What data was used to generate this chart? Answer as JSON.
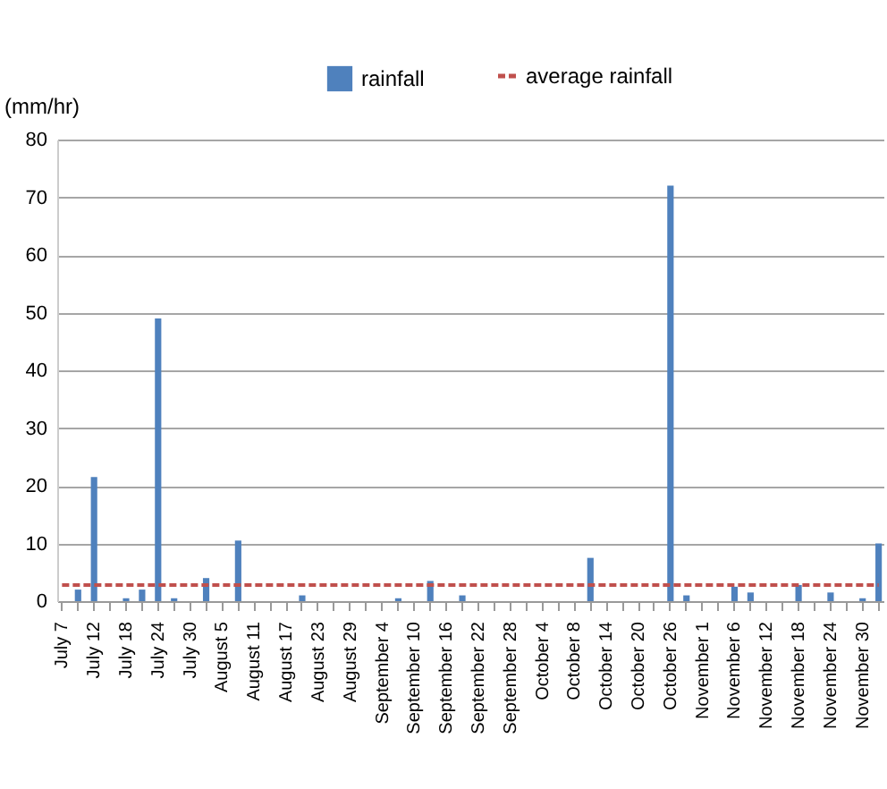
{
  "chart_data": {
    "type": "bar",
    "ylabel": "(mm/hr)",
    "categories": [
      "July 7",
      null,
      "July 12",
      null,
      "July 18",
      null,
      "July 24",
      null,
      "July 30",
      null,
      "August 5",
      null,
      "August 11",
      null,
      "August 17",
      null,
      "August 23",
      null,
      "August 29",
      null,
      "September 4",
      null,
      "September 10",
      null,
      "September 16",
      null,
      "September 22",
      null,
      "September 28",
      null,
      "October 4",
      null,
      "October 8",
      null,
      "October 14",
      null,
      "October 20",
      null,
      "October 26",
      null,
      "November 1",
      null,
      "November 6",
      null,
      "November 12",
      null,
      "November 18",
      null,
      "November 24",
      null,
      "November 30",
      null
    ],
    "series": [
      {
        "name": "rainfall",
        "color": "#4f81bd",
        "values": [
          0,
          2,
          21.5,
          0,
          0.5,
          2,
          49,
          0.5,
          0,
          4,
          0,
          10.5,
          0,
          0,
          0,
          1,
          0,
          0,
          0,
          0,
          0,
          0.5,
          0,
          3.5,
          0,
          1,
          0,
          0,
          0,
          0,
          0,
          0,
          0,
          7.5,
          0,
          0,
          0,
          0,
          72,
          1,
          0,
          0,
          2.5,
          1.5,
          0,
          0,
          2.8,
          0,
          1.5,
          0,
          0.5,
          10
        ]
      },
      {
        "name": "average rainfall",
        "type": "line",
        "color": "#c0504d",
        "line_style": "dashed",
        "values": [
          2.8,
          2.8,
          2.8,
          2.8,
          2.8,
          2.8,
          2.8,
          2.8,
          2.8,
          2.8,
          2.8,
          2.8,
          2.8,
          2.8,
          2.8,
          2.8,
          2.8,
          2.8,
          2.8,
          2.8,
          2.8,
          2.8,
          2.8,
          2.8,
          2.8,
          2.8,
          2.8,
          2.8,
          2.8,
          2.8,
          2.8,
          2.8,
          2.8,
          2.8,
          2.8,
          2.8,
          2.8,
          2.8,
          2.8,
          2.8,
          2.8,
          2.8,
          2.8,
          2.8,
          2.8,
          2.8,
          2.8,
          2.8,
          2.8,
          2.8,
          2.8,
          2.8
        ]
      }
    ],
    "ylim": [
      0,
      80
    ],
    "yticks": [
      0,
      10,
      20,
      30,
      40,
      50,
      60,
      70,
      80
    ],
    "grid": "y",
    "legend": "top"
  }
}
